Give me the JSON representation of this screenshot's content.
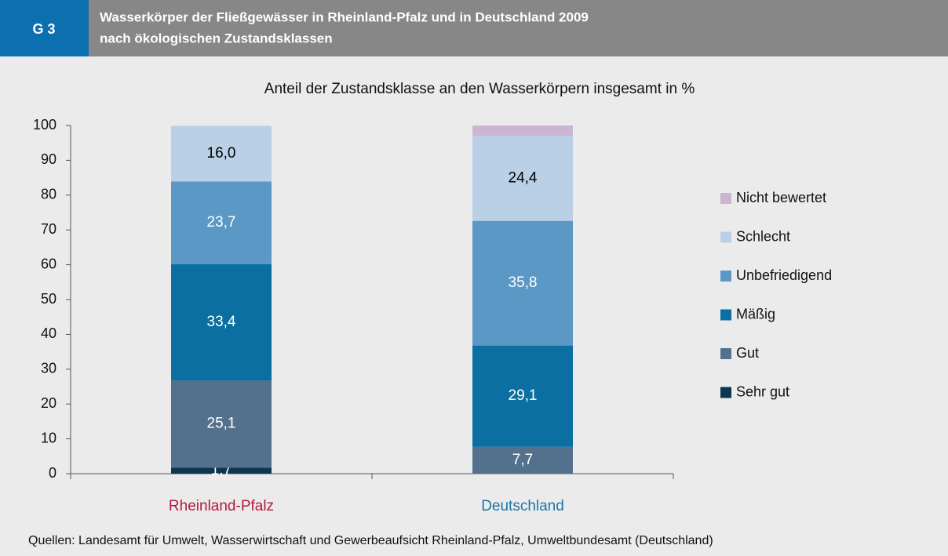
{
  "chart_data": {
    "type": "stacked_bar",
    "label": "G 3",
    "title": [
      "Wasserkörper der Fließgewässer in Rheinland-Pfalz und in Deutschland 2009",
      "nach ökologischen Zustandsklassen"
    ],
    "subtitle": "Anteil der Zustandsklasse an den Wasserkörpern insgesamt in %",
    "source": "Quellen: Landesamt für Umwelt, Wasserwirtschaft und Gewerbeaufsicht Rheinland-Pfalz, Umweltbundesamt (Deutschland)",
    "categories": [
      "Rheinland-Pfalz",
      "Deutschland"
    ],
    "category_colors": [
      "#b5173f",
      "#1f74a8"
    ],
    "series": [
      {
        "name": "Sehr gut",
        "color": "#0e3552",
        "label_color": "#ffffff",
        "values": [
          1.7,
          0
        ],
        "value_labels": [
          "1,7",
          null
        ]
      },
      {
        "name": "Gut",
        "color": "#53718d",
        "label_color": "#ffffff",
        "values": [
          25.1,
          7.7
        ],
        "value_labels": [
          "25,1",
          "7,7"
        ]
      },
      {
        "name": "Mäßig",
        "color": "#0b6fa1",
        "label_color": "#ffffff",
        "values": [
          33.4,
          29.1
        ],
        "value_labels": [
          "33,4",
          "29,1"
        ]
      },
      {
        "name": "Unbefriedigend",
        "color": "#5b98c5",
        "label_color": "#ffffff",
        "values": [
          23.7,
          35.8
        ],
        "value_labels": [
          "23,7",
          "35,8"
        ]
      },
      {
        "name": "Schlecht",
        "color": "#bad0e7",
        "label_color": "#000000",
        "values": [
          16.0,
          24.4
        ],
        "value_labels": [
          "16,0",
          "24,4"
        ]
      },
      {
        "name": "Nicht bewertet",
        "color": "#cbb6d2",
        "label_color": "#000000",
        "values": [
          0,
          3.0
        ],
        "value_labels": [
          null,
          null
        ]
      }
    ],
    "ylim": [
      0,
      100
    ],
    "yticks": [
      0,
      10,
      20,
      30,
      40,
      50,
      60,
      70,
      80,
      90,
      100
    ],
    "legend": "right"
  }
}
